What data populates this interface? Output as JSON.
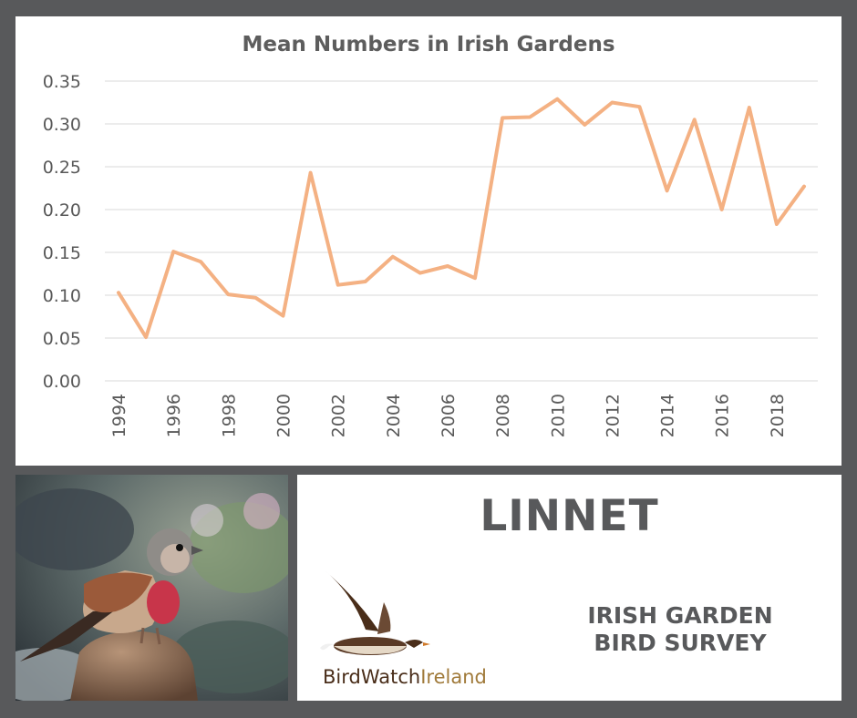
{
  "chart_data": {
    "type": "line",
    "title": "Mean Numbers in Irish Gardens",
    "xlabel": "",
    "ylabel": "",
    "x": [
      1994,
      1995,
      1996,
      1997,
      1998,
      1999,
      2000,
      2001,
      2002,
      2003,
      2004,
      2005,
      2006,
      2007,
      2008,
      2009,
      2010,
      2011,
      2012,
      2013,
      2014,
      2015,
      2016,
      2017,
      2018,
      2019
    ],
    "series": [
      {
        "values": [
          0.103,
          0.051,
          0.151,
          0.139,
          0.101,
          0.097,
          0.076,
          0.243,
          0.112,
          0.116,
          0.145,
          0.126,
          0.134,
          0.12,
          0.307,
          0.308,
          0.329,
          0.299,
          0.325,
          0.32,
          0.222,
          0.305,
          0.2,
          0.319,
          0.183,
          0.227
        ]
      }
    ],
    "x_tick_labels": [
      "1994",
      "1996",
      "1998",
      "2000",
      "2002",
      "2004",
      "2006",
      "2008",
      "2010",
      "2012",
      "2014",
      "2016",
      "2018"
    ],
    "y_tick_labels": [
      "0.35",
      "0.30",
      "0.25",
      "0.20",
      "0.15",
      "0.10",
      "0.05",
      "0.00"
    ],
    "ylim": [
      0,
      0.35
    ],
    "grid": true,
    "line_color": "#f4b183"
  },
  "info": {
    "species": "LINNET",
    "survey_line1": "IRISH GARDEN",
    "survey_line2": "BIRD SURVEY",
    "brand_part1": "BirdWatch",
    "brand_part2": "Ireland"
  },
  "photo_icon": "linnet-bird-photo"
}
